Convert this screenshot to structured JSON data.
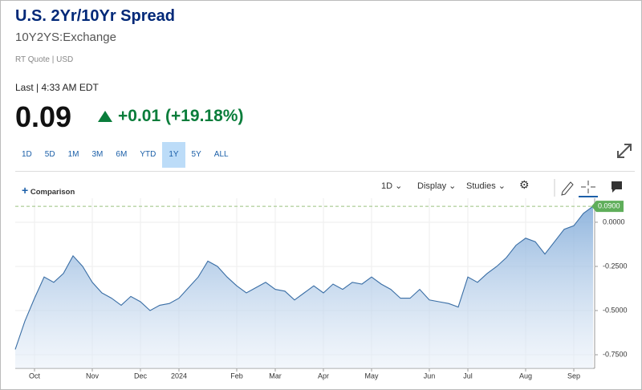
{
  "header": {
    "title": "U.S. 2Yr/10Yr Spread",
    "symbol": "10Y2YS:Exchange",
    "quote_info": "RT Quote | USD",
    "last_time": "Last | 4:33 AM EDT",
    "price": "0.09",
    "change": "+0.01 (+19.18%)"
  },
  "ranges": [
    "1D",
    "5D",
    "1M",
    "3M",
    "6M",
    "YTD",
    "1Y",
    "5Y",
    "ALL"
  ],
  "selected_range": "1Y",
  "toolbar": {
    "comparison": "Comparison",
    "interval": "1D",
    "display": "Display",
    "studies": "Studies"
  },
  "chart_data": {
    "type": "area",
    "categories": [
      null,
      null,
      "Oct",
      null,
      null,
      null,
      null,
      null,
      "Nov",
      null,
      null,
      null,
      null,
      "Dec",
      null,
      null,
      null,
      "2024",
      null,
      null,
      null,
      null,
      null,
      "Feb",
      null,
      null,
      null,
      "Mar",
      null,
      null,
      null,
      null,
      "Apr",
      null,
      null,
      null,
      null,
      "May",
      null,
      null,
      null,
      null,
      null,
      "Jun",
      null,
      null,
      null,
      "Jul",
      null,
      null,
      null,
      null,
      null,
      "Aug",
      null,
      null,
      null,
      null,
      "Sep",
      null,
      null
    ],
    "series": [
      {
        "name": "10Y2YS",
        "color": "#3a6ea5",
        "values": [
          -0.72,
          -0.56,
          -0.43,
          -0.31,
          -0.34,
          -0.29,
          -0.19,
          -0.25,
          -0.34,
          -0.4,
          -0.43,
          -0.47,
          -0.42,
          -0.45,
          -0.5,
          -0.47,
          -0.46,
          -0.43,
          -0.37,
          -0.31,
          -0.22,
          -0.25,
          -0.31,
          -0.36,
          -0.4,
          -0.37,
          -0.34,
          -0.38,
          -0.39,
          -0.44,
          -0.4,
          -0.36,
          -0.4,
          -0.35,
          -0.38,
          -0.34,
          -0.35,
          -0.31,
          -0.35,
          -0.38,
          -0.43,
          -0.43,
          -0.38,
          -0.44,
          -0.45,
          -0.46,
          -0.48,
          -0.31,
          -0.34,
          -0.29,
          -0.25,
          -0.2,
          -0.13,
          -0.09,
          -0.11,
          -0.18,
          -0.11,
          -0.04,
          -0.02,
          0.05,
          0.09
        ]
      }
    ],
    "last_label": "0.0900",
    "ylim": [
      -0.827,
      0.136
    ],
    "yticks": [
      {
        "value": 0,
        "label": "0.0000"
      },
      {
        "value": -0.25,
        "label": "-0.2500"
      },
      {
        "value": -0.5,
        "label": "-0.5000"
      },
      {
        "value": -0.75,
        "label": "-0.7500"
      }
    ],
    "grid": true
  }
}
